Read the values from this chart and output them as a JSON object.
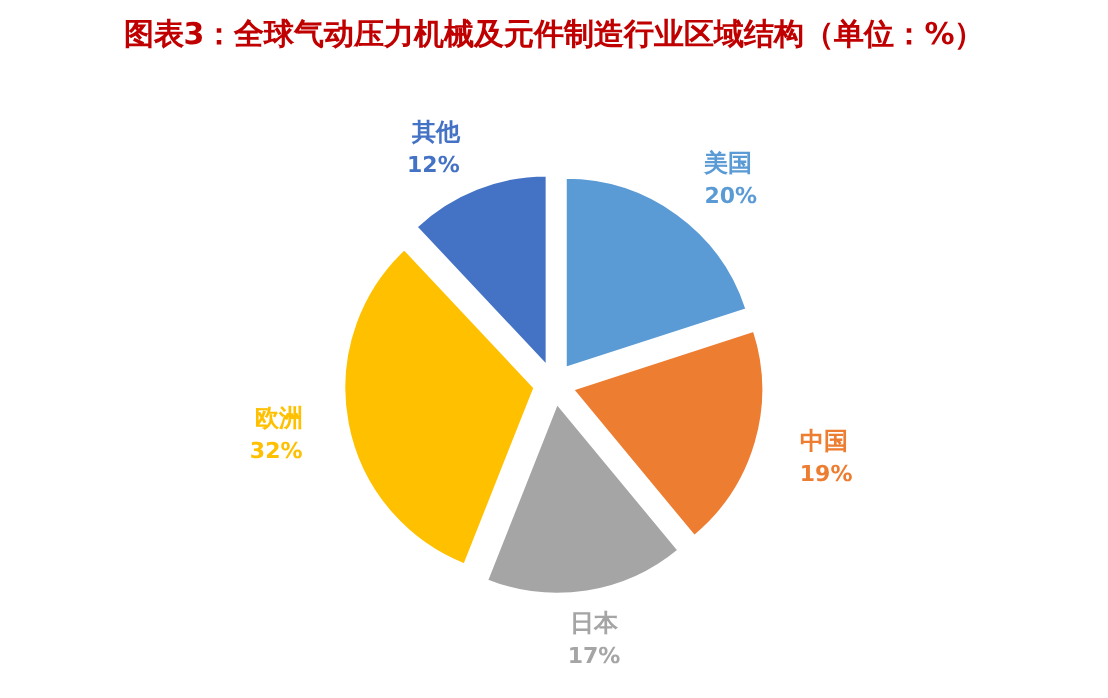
{
  "chart_data": {
    "type": "pie",
    "title": "图表3：全球气动压力机械及元件制造行业区域结构（单位：%）",
    "categories": [
      "美国",
      "中国",
      "日本",
      "欧洲",
      "其他"
    ],
    "values": [
      20,
      19,
      17,
      32,
      12
    ],
    "colors": [
      "#5b9bd5",
      "#ed7d31",
      "#a5a5a5",
      "#ffc000",
      "#4472c4"
    ],
    "value_labels": [
      "20%",
      "19%",
      "17%",
      "32%",
      "12%"
    ]
  }
}
